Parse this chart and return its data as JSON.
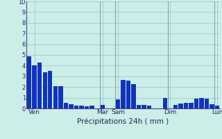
{
  "title": "Précipitations 24h ( mm )",
  "background_color": "#cceee8",
  "grid_color": "#99cccc",
  "bar_color": "#1133bb",
  "ylim": [
    0,
    10
  ],
  "yticks": [
    0,
    1,
    2,
    3,
    4,
    5,
    6,
    7,
    8,
    9,
    10
  ],
  "values": [
    4.9,
    4.05,
    4.3,
    3.4,
    3.5,
    2.1,
    2.1,
    0.55,
    0.4,
    0.25,
    0.25,
    0.2,
    0.25,
    0.0,
    0.35,
    0.0,
    0.0,
    0.85,
    2.65,
    2.6,
    2.3,
    0.3,
    0.3,
    0.25,
    0.0,
    0.0,
    0.95,
    0.0,
    0.35,
    0.45,
    0.5,
    0.55,
    0.9,
    0.95,
    0.9,
    0.4,
    0.25
  ],
  "day_labels": [
    "Ven",
    "Mar",
    "Sam",
    "Dim",
    "Lun"
  ],
  "day_positions": [
    1,
    14,
    17,
    27,
    36
  ],
  "vline_positions": [
    13.5,
    16.5,
    26.5,
    35.5
  ]
}
